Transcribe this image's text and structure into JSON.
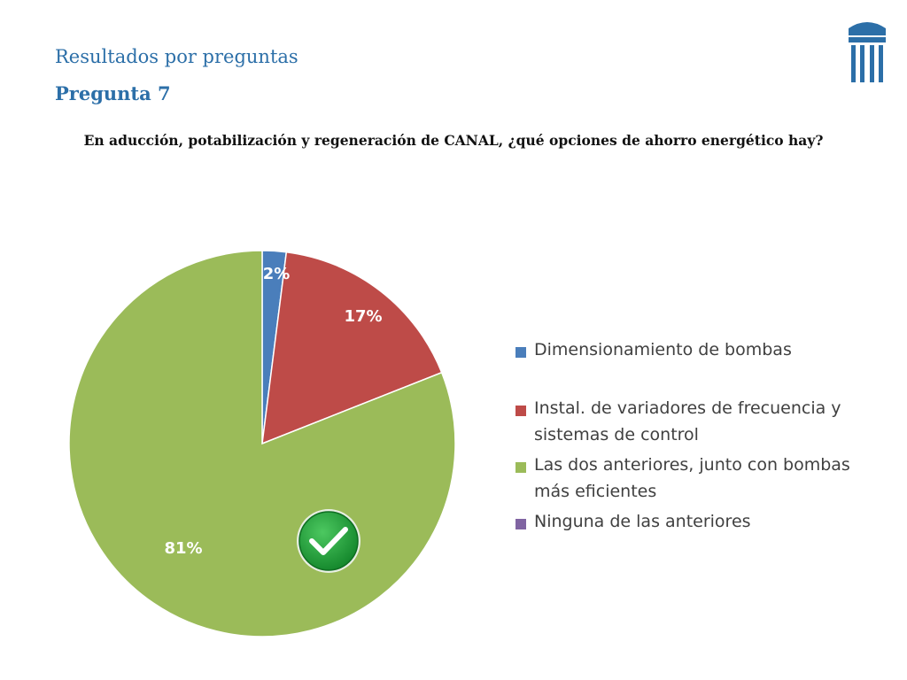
{
  "header": {
    "subtitle": "Resultados por preguntas",
    "question_number": "Pregunta 7",
    "question_text": "En aducción, potabilización y regeneración de CANAL, ¿qué opciones de ahorro energético hay?"
  },
  "logo": {
    "icon": "columns-building-icon",
    "color": "#2c6fa8"
  },
  "correct_mark": {
    "icon": "checkmark-icon",
    "color": "#22a03a"
  },
  "chart_data": {
    "type": "pie",
    "start_angle": "12 o'clock, clockwise",
    "slices": [
      {
        "label": "Dimensionamiento de bombas",
        "value": 2,
        "display": "2%",
        "color": "#4a7ebb"
      },
      {
        "label": "Instal. de variadores de frecuencia y sistemas de control",
        "value": 17,
        "display": "17%",
        "color": "#be4b48"
      },
      {
        "label": "Las dos anteriores, junto con bombas más eficientes",
        "value": 81,
        "display": "81%",
        "color": "#9bbb59"
      },
      {
        "label": "Ninguna de las anteriores",
        "value": 0,
        "display": "",
        "color": "#8064a2"
      }
    ],
    "legend_position": "right"
  }
}
